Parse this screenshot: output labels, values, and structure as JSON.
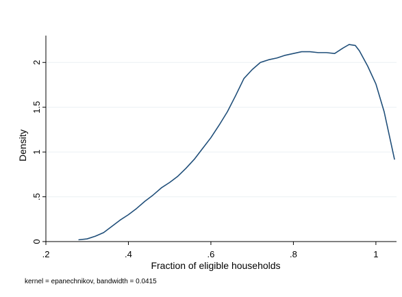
{
  "chart_data": {
    "type": "line",
    "title": "",
    "xlabel": "Fraction of eligible households",
    "ylabel": "Density",
    "note": "kernel = epanechnikov, bandwidth = 0.0415",
    "xlim": [
      0.2,
      1.05
    ],
    "ylim": [
      0,
      2.3
    ],
    "grid": "horizontal",
    "xticks": [
      0.2,
      0.4,
      0.6,
      0.8,
      1.0
    ],
    "xtick_labels": [
      ".2",
      ".4",
      ".6",
      ".8",
      "1"
    ],
    "yticks": [
      0,
      0.5,
      1,
      1.5,
      2
    ],
    "ytick_labels": [
      "0",
      ".5",
      "1",
      "1.5",
      "2"
    ],
    "series": [
      {
        "color": "#1f4e79",
        "x": [
          0.28,
          0.3,
          0.32,
          0.34,
          0.36,
          0.38,
          0.4,
          0.42,
          0.44,
          0.46,
          0.48,
          0.5,
          0.52,
          0.54,
          0.56,
          0.58,
          0.6,
          0.62,
          0.64,
          0.66,
          0.68,
          0.7,
          0.72,
          0.74,
          0.76,
          0.78,
          0.8,
          0.82,
          0.84,
          0.86,
          0.88,
          0.9,
          0.92,
          0.935,
          0.95,
          0.96,
          0.98,
          1.0,
          1.02,
          1.045
        ],
        "y": [
          0.02,
          0.03,
          0.06,
          0.1,
          0.17,
          0.24,
          0.3,
          0.37,
          0.45,
          0.52,
          0.6,
          0.66,
          0.73,
          0.82,
          0.92,
          1.04,
          1.16,
          1.3,
          1.45,
          1.63,
          1.82,
          1.92,
          2.0,
          2.03,
          2.05,
          2.08,
          2.1,
          2.12,
          2.12,
          2.11,
          2.11,
          2.1,
          2.16,
          2.2,
          2.19,
          2.13,
          1.96,
          1.76,
          1.45,
          0.92
        ]
      }
    ]
  }
}
